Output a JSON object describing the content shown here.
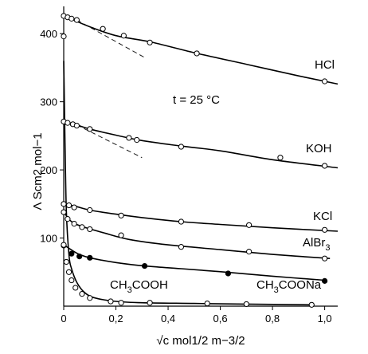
{
  "chart_data": {
    "type": "line",
    "title": "",
    "annotation": "t = 25 °C",
    "xlabel": "√c   mol1/2 m−3/2",
    "ylabel": "Λ  Scm2 mol−1",
    "xlim": [
      0,
      1.05
    ],
    "ylim": [
      0,
      440
    ],
    "x_ticks": [
      0,
      0.2,
      0.4,
      0.6,
      0.8,
      1.0
    ],
    "x_tick_labels": [
      "0",
      "0,2",
      "0,4",
      "0,6",
      "0,8",
      "1,0"
    ],
    "y_ticks": [
      100,
      200,
      300,
      400
    ],
    "y_tick_labels": [
      "100",
      "200",
      "300",
      "400"
    ],
    "grid": false,
    "series": [
      {
        "name": "HCl",
        "marker": "open",
        "curve_x": [
          0,
          0.02,
          0.05,
          0.1,
          0.2,
          0.33,
          0.5,
          0.7,
          0.9,
          1.05
        ],
        "curve_y": [
          425,
          423,
          418,
          410,
          397,
          388,
          372,
          355,
          338,
          326
        ],
        "points_x": [
          0,
          0.015,
          0.03,
          0.05,
          0.15,
          0.23,
          0.33,
          0.51,
          1.0
        ],
        "points_y": [
          426,
          424,
          422,
          420,
          407,
          397,
          387,
          371,
          330
        ],
        "extra_points_x": [
          0
        ],
        "extra_points_y": [
          396
        ]
      },
      {
        "name": "KOH",
        "marker": "open",
        "curve_x": [
          0,
          0.05,
          0.1,
          0.2,
          0.3,
          0.45,
          0.6,
          0.8,
          1.05
        ],
        "curve_y": [
          271,
          266,
          260,
          251,
          243,
          235,
          228,
          215,
          203
        ],
        "points_x": [
          0,
          0.015,
          0.035,
          0.05,
          0.1,
          0.25,
          0.28,
          0.45,
          0.83,
          1.0
        ],
        "points_y": [
          271,
          269,
          267,
          265,
          260,
          247,
          244,
          234,
          218,
          206
        ]
      },
      {
        "name": "KCl",
        "marker": "open",
        "curve_x": [
          0,
          0.05,
          0.1,
          0.2,
          0.3,
          0.45,
          0.6,
          0.8,
          1.05
        ],
        "curve_y": [
          150,
          146,
          141,
          135,
          130,
          124,
          120,
          115,
          110
        ],
        "points_x": [
          0,
          0.02,
          0.04,
          0.1,
          0.22,
          0.45,
          0.71,
          1.0
        ],
        "points_y": [
          150,
          148,
          145,
          141,
          133,
          124,
          119,
          112
        ]
      },
      {
        "name": "AlBr3",
        "label_main": "AlBr",
        "label_sub": "3",
        "marker": "open",
        "curve_x": [
          0,
          0.03,
          0.07,
          0.15,
          0.25,
          0.4,
          0.6,
          0.8,
          1.02
        ],
        "curve_y": [
          138,
          124,
          117,
          108,
          98,
          90,
          83,
          76,
          70
        ],
        "points_x": [
          0,
          0.015,
          0.04,
          0.07,
          0.1,
          0.22,
          0.45,
          0.71,
          1.0
        ],
        "points_y": [
          138,
          128,
          121,
          116,
          113,
          104,
          87,
          80,
          70
        ]
      },
      {
        "name": "CH3COONa",
        "label_main": "CH",
        "label_sub": "3",
        "label_tail": "COONa",
        "marker": "filled",
        "curve_x": [
          0,
          0.02,
          0.04,
          0.06,
          0.1,
          0.2,
          0.31,
          0.45,
          0.62,
          0.8,
          1.0
        ],
        "curve_y": [
          90,
          85,
          80,
          76,
          71,
          64,
          59,
          55,
          50,
          44,
          38
        ],
        "points_x": [
          0,
          0.03,
          0.06,
          0.1,
          0.31,
          0.63,
          1.0
        ],
        "points_y": [
          89,
          77,
          73,
          71,
          59,
          48,
          37
        ]
      },
      {
        "name": "CH3COOH",
        "label_main": "CH",
        "label_sub": "3",
        "label_tail": "COOH",
        "marker": "open",
        "curve_x": [
          0,
          0.005,
          0.01,
          0.02,
          0.03,
          0.05,
          0.08,
          0.12,
          0.2,
          0.3,
          0.5,
          0.7,
          0.95
        ],
        "curve_y": [
          360,
          240,
          140,
          75,
          55,
          35,
          20,
          12,
          7,
          5,
          4,
          3,
          2
        ],
        "points_x": [
          0,
          0.01,
          0.02,
          0.03,
          0.045,
          0.07,
          0.1,
          0.18,
          0.22,
          0.33,
          0.55,
          0.7,
          0.95
        ],
        "points_y": [
          90,
          65,
          50,
          38,
          27,
          18,
          12,
          7,
          5,
          5,
          4,
          3,
          2
        ]
      }
    ],
    "tangents": [
      {
        "of": "HCl",
        "x": [
          0.05,
          0.31
        ],
        "y": [
          420,
          365
        ]
      },
      {
        "of": "KOH",
        "x": [
          0.05,
          0.3
        ],
        "y": [
          266,
          218
        ]
      }
    ]
  }
}
